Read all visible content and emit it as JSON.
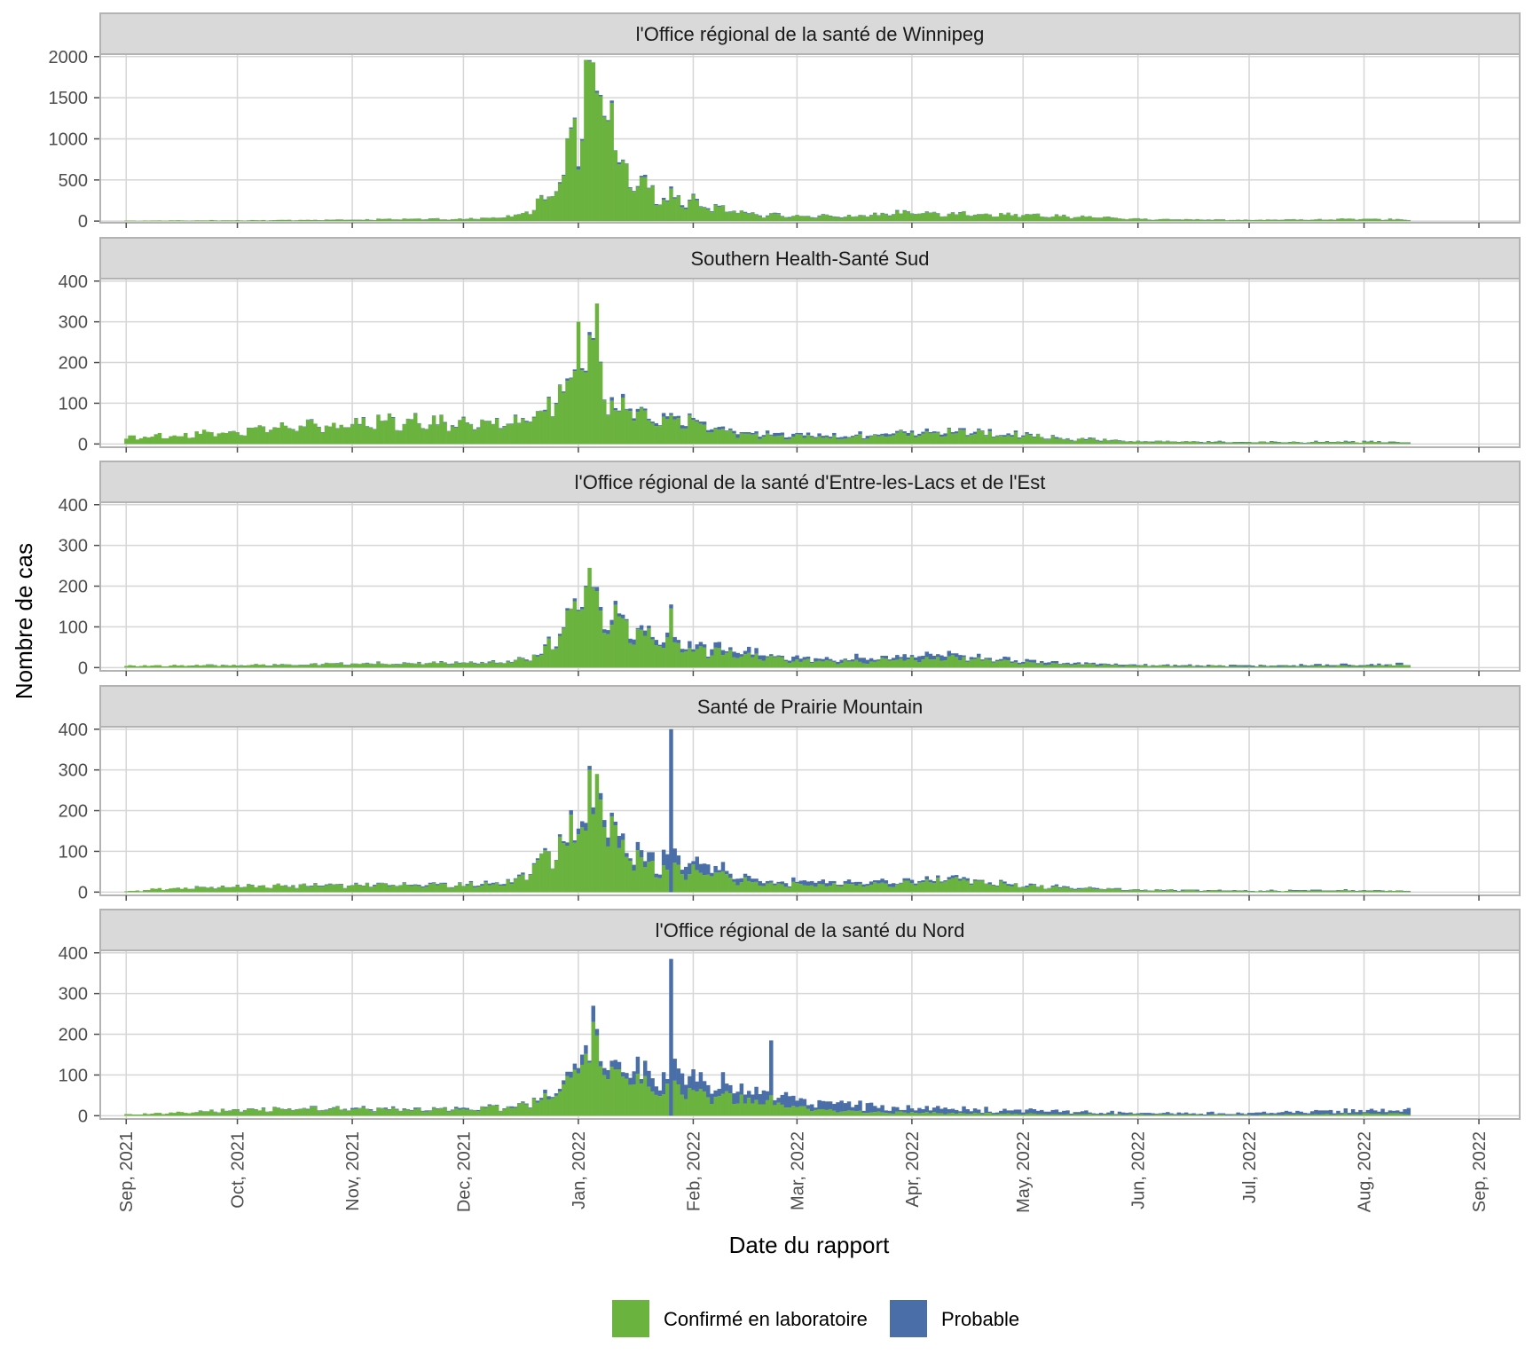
{
  "chart_data": {
    "type": "bar",
    "stacked": true,
    "xlabel": "Date du rapport",
    "ylabel": "Nombre de cas",
    "x_range": [
      "2021-08-25",
      "2022-09-12"
    ],
    "x_ticks": [
      {
        "date": "2021-09-01",
        "label": "Sep, 2021"
      },
      {
        "date": "2021-10-01",
        "label": "Oct, 2021"
      },
      {
        "date": "2021-11-01",
        "label": "Nov, 2021"
      },
      {
        "date": "2021-12-01",
        "label": "Dec, 2021"
      },
      {
        "date": "2022-01-01",
        "label": "Jan, 2022"
      },
      {
        "date": "2022-02-01",
        "label": "Feb, 2022"
      },
      {
        "date": "2022-03-01",
        "label": "Mar, 2022"
      },
      {
        "date": "2022-04-01",
        "label": "Apr, 2022"
      },
      {
        "date": "2022-05-01",
        "label": "May, 2022"
      },
      {
        "date": "2022-06-01",
        "label": "Jun, 2022"
      },
      {
        "date": "2022-07-01",
        "label": "Jul, 2022"
      },
      {
        "date": "2022-08-01",
        "label": "Aug, 2022"
      },
      {
        "date": "2022-09-01",
        "label": "Sep, 2022"
      }
    ],
    "grid": true,
    "legend_position": "bottom",
    "legend": [
      {
        "name": "Confirmé en laboratoire",
        "color": "#6bb33f"
      },
      {
        "name": "Probable",
        "color": "#4a6fa8"
      }
    ],
    "colors": {
      "confirmed": "#6bb33f",
      "probable": "#4a6fa8",
      "strip_bg": "#d9d9d9",
      "panel_border": "#b3b3b3",
      "grid": "#d6d6d6"
    },
    "panels": [
      {
        "title": "l'Office régional de la santé de Winnipeg",
        "ylim": [
          -20,
          2030
        ],
        "yticks": [
          0,
          500,
          1000,
          1500,
          2000
        ],
        "confirmed_keys": [
          [
            "2021-09-01",
            5
          ],
          [
            "2021-09-15",
            8
          ],
          [
            "2021-10-01",
            10
          ],
          [
            "2021-10-15",
            12
          ],
          [
            "2021-11-01",
            18
          ],
          [
            "2021-11-15",
            25
          ],
          [
            "2021-12-01",
            25
          ],
          [
            "2021-12-08",
            35
          ],
          [
            "2021-12-15",
            70
          ],
          [
            "2021-12-20",
            170
          ],
          [
            "2021-12-24",
            350
          ],
          [
            "2021-12-28",
            700
          ],
          [
            "2021-12-31",
            1000
          ],
          [
            "2022-01-02",
            1300
          ],
          [
            "2022-01-05",
            1700
          ],
          [
            "2022-01-07",
            1550
          ],
          [
            "2022-01-10",
            1300
          ],
          [
            "2022-01-12",
            650
          ],
          [
            "2022-01-15",
            500
          ],
          [
            "2022-01-20",
            400
          ],
          [
            "2022-01-25",
            330
          ],
          [
            "2022-02-01",
            250
          ],
          [
            "2022-02-10",
            150
          ],
          [
            "2022-02-20",
            80
          ],
          [
            "2022-03-01",
            60
          ],
          [
            "2022-03-15",
            60
          ],
          [
            "2022-04-01",
            110
          ],
          [
            "2022-04-15",
            100
          ],
          [
            "2022-05-01",
            80
          ],
          [
            "2022-05-15",
            60
          ],
          [
            "2022-06-01",
            25
          ],
          [
            "2022-07-01",
            15
          ],
          [
            "2022-08-01",
            25
          ],
          [
            "2022-08-12",
            20
          ]
        ],
        "probable_keys": [
          [
            "2021-09-01",
            0
          ],
          [
            "2021-12-20",
            3
          ],
          [
            "2022-01-01",
            25
          ],
          [
            "2022-01-15",
            20
          ],
          [
            "2022-02-01",
            12
          ],
          [
            "2022-03-01",
            6
          ],
          [
            "2022-04-01",
            5
          ],
          [
            "2022-06-01",
            2
          ],
          [
            "2022-08-12",
            2
          ]
        ],
        "spikes": [
          {
            "date": "2022-01-03",
            "confirmed": 1960,
            "probable": 0
          },
          {
            "date": "2022-01-05",
            "confirmed": 1930,
            "probable": 0
          }
        ]
      },
      {
        "title": "Southern Health-Santé Sud",
        "ylim": [
          -8,
          406
        ],
        "yticks": [
          0,
          100,
          200,
          300,
          400
        ],
        "confirmed_keys": [
          [
            "2021-09-01",
            18
          ],
          [
            "2021-09-15",
            25
          ],
          [
            "2021-10-01",
            33
          ],
          [
            "2021-10-15",
            45
          ],
          [
            "2021-11-01",
            55
          ],
          [
            "2021-11-15",
            60
          ],
          [
            "2021-12-01",
            55
          ],
          [
            "2021-12-15",
            60
          ],
          [
            "2021-12-24",
            90
          ],
          [
            "2021-12-29",
            170
          ],
          [
            "2022-01-02",
            230
          ],
          [
            "2022-01-05",
            200
          ],
          [
            "2022-01-10",
            110
          ],
          [
            "2022-01-20",
            70
          ],
          [
            "2022-02-01",
            55
          ],
          [
            "2022-02-15",
            25
          ],
          [
            "2022-03-01",
            20
          ],
          [
            "2022-03-15",
            18
          ],
          [
            "2022-04-01",
            28
          ],
          [
            "2022-04-15",
            30
          ],
          [
            "2022-05-01",
            22
          ],
          [
            "2022-05-15",
            12
          ],
          [
            "2022-06-01",
            7
          ],
          [
            "2022-07-01",
            4
          ],
          [
            "2022-08-01",
            5
          ],
          [
            "2022-08-12",
            4
          ]
        ],
        "probable_keys": [
          [
            "2021-09-01",
            0
          ],
          [
            "2021-12-20",
            2
          ],
          [
            "2022-01-10",
            6
          ],
          [
            "2022-02-01",
            6
          ],
          [
            "2022-03-01",
            4
          ],
          [
            "2022-04-01",
            5
          ],
          [
            "2022-05-01",
            3
          ],
          [
            "2022-06-01",
            1
          ],
          [
            "2022-08-12",
            1
          ]
        ],
        "spikes": [
          {
            "date": "2022-01-06",
            "confirmed": 345,
            "probable": 0
          },
          {
            "date": "2022-01-01",
            "confirmed": 300,
            "probable": 0
          }
        ]
      },
      {
        "title": "l'Office régional de la santé d'Entre-les-Lacs et de l'Est",
        "ylim": [
          -8,
          406
        ],
        "yticks": [
          0,
          100,
          200,
          300,
          400
        ],
        "confirmed_keys": [
          [
            "2021-09-01",
            5
          ],
          [
            "2021-10-01",
            6
          ],
          [
            "2021-11-01",
            10
          ],
          [
            "2021-12-01",
            12
          ],
          [
            "2021-12-15",
            15
          ],
          [
            "2021-12-22",
            40
          ],
          [
            "2021-12-27",
            100
          ],
          [
            "2022-01-01",
            160
          ],
          [
            "2022-01-04",
            200
          ],
          [
            "2022-01-08",
            140
          ],
          [
            "2022-01-15",
            100
          ],
          [
            "2022-01-22",
            70
          ],
          [
            "2022-02-01",
            45
          ],
          [
            "2022-02-15",
            30
          ],
          [
            "2022-03-01",
            18
          ],
          [
            "2022-03-15",
            15
          ],
          [
            "2022-04-01",
            22
          ],
          [
            "2022-04-15",
            25
          ],
          [
            "2022-05-01",
            12
          ],
          [
            "2022-05-15",
            8
          ],
          [
            "2022-06-01",
            5
          ],
          [
            "2022-07-01",
            3
          ],
          [
            "2022-08-01",
            5
          ],
          [
            "2022-08-12",
            6
          ]
        ],
        "probable_keys": [
          [
            "2021-09-01",
            0
          ],
          [
            "2021-12-20",
            2
          ],
          [
            "2022-01-15",
            8
          ],
          [
            "2022-02-01",
            10
          ],
          [
            "2022-03-01",
            8
          ],
          [
            "2022-04-01",
            10
          ],
          [
            "2022-05-01",
            5
          ],
          [
            "2022-06-01",
            2
          ],
          [
            "2022-08-01",
            3
          ],
          [
            "2022-08-12",
            3
          ]
        ],
        "spikes": [
          {
            "date": "2022-01-04",
            "confirmed": 245,
            "probable": 0
          },
          {
            "date": "2022-01-26",
            "confirmed": 145,
            "probable": 10
          }
        ]
      },
      {
        "title": "Santé de Prairie Mountain",
        "ylim": [
          -8,
          406
        ],
        "yticks": [
          0,
          100,
          200,
          300,
          400
        ],
        "confirmed_keys": [
          [
            "2021-09-01",
            2
          ],
          [
            "2021-09-10",
            8
          ],
          [
            "2021-10-01",
            15
          ],
          [
            "2021-11-01",
            18
          ],
          [
            "2021-12-01",
            18
          ],
          [
            "2021-12-15",
            25
          ],
          [
            "2021-12-24",
            100
          ],
          [
            "2022-01-01",
            170
          ],
          [
            "2022-01-05",
            230
          ],
          [
            "2022-01-10",
            150
          ],
          [
            "2022-01-20",
            70
          ],
          [
            "2022-02-01",
            55
          ],
          [
            "2022-02-15",
            30
          ],
          [
            "2022-03-01",
            20
          ],
          [
            "2022-03-15",
            18
          ],
          [
            "2022-04-01",
            25
          ],
          [
            "2022-04-15",
            32
          ],
          [
            "2022-05-01",
            15
          ],
          [
            "2022-05-15",
            10
          ],
          [
            "2022-06-01",
            5
          ],
          [
            "2022-07-01",
            3
          ],
          [
            "2022-08-01",
            4
          ],
          [
            "2022-08-12",
            3
          ]
        ],
        "probable_keys": [
          [
            "2021-09-01",
            0
          ],
          [
            "2021-12-25",
            3
          ],
          [
            "2022-01-10",
            18
          ],
          [
            "2022-01-25",
            25
          ],
          [
            "2022-02-15",
            12
          ],
          [
            "2022-03-01",
            8
          ],
          [
            "2022-04-01",
            6
          ],
          [
            "2022-05-01",
            3
          ],
          [
            "2022-06-01",
            1
          ],
          [
            "2022-08-12",
            1
          ]
        ],
        "spikes": [
          {
            "date": "2022-01-26",
            "confirmed": 0,
            "probable": 400
          },
          {
            "date": "2022-01-04",
            "confirmed": 300,
            "probable": 10
          },
          {
            "date": "2022-01-06",
            "confirmed": 290,
            "probable": 0
          }
        ]
      },
      {
        "title": "l'Office régional de la santé du Nord",
        "ylim": [
          -8,
          406
        ],
        "yticks": [
          0,
          100,
          200,
          300,
          400
        ],
        "confirmed_keys": [
          [
            "2021-09-01",
            3
          ],
          [
            "2021-09-15",
            8
          ],
          [
            "2021-10-01",
            15
          ],
          [
            "2021-10-15",
            18
          ],
          [
            "2021-11-01",
            18
          ],
          [
            "2021-12-01",
            15
          ],
          [
            "2021-12-15",
            25
          ],
          [
            "2021-12-25",
            50
          ],
          [
            "2022-01-01",
            130
          ],
          [
            "2022-01-05",
            170
          ],
          [
            "2022-01-10",
            110
          ],
          [
            "2022-01-20",
            80
          ],
          [
            "2022-02-01",
            60
          ],
          [
            "2022-02-15",
            40
          ],
          [
            "2022-03-01",
            20
          ],
          [
            "2022-03-15",
            10
          ],
          [
            "2022-04-01",
            8
          ],
          [
            "2022-05-01",
            5
          ],
          [
            "2022-06-01",
            3
          ],
          [
            "2022-07-01",
            2
          ],
          [
            "2022-08-01",
            5
          ],
          [
            "2022-08-12",
            5
          ]
        ],
        "probable_keys": [
          [
            "2021-09-01",
            0
          ],
          [
            "2021-12-20",
            3
          ],
          [
            "2022-01-08",
            20
          ],
          [
            "2022-01-25",
            35
          ],
          [
            "2022-02-15",
            30
          ],
          [
            "2022-03-01",
            20
          ],
          [
            "2022-04-01",
            12
          ],
          [
            "2022-05-01",
            8
          ],
          [
            "2022-06-01",
            4
          ],
          [
            "2022-07-01",
            4
          ],
          [
            "2022-08-01",
            8
          ],
          [
            "2022-08-12",
            12
          ]
        ],
        "spikes": [
          {
            "date": "2022-01-26",
            "confirmed": 0,
            "probable": 385
          },
          {
            "date": "2022-01-05",
            "confirmed": 230,
            "probable": 40
          },
          {
            "date": "2022-02-22",
            "confirmed": 50,
            "probable": 135
          }
        ]
      }
    ]
  }
}
